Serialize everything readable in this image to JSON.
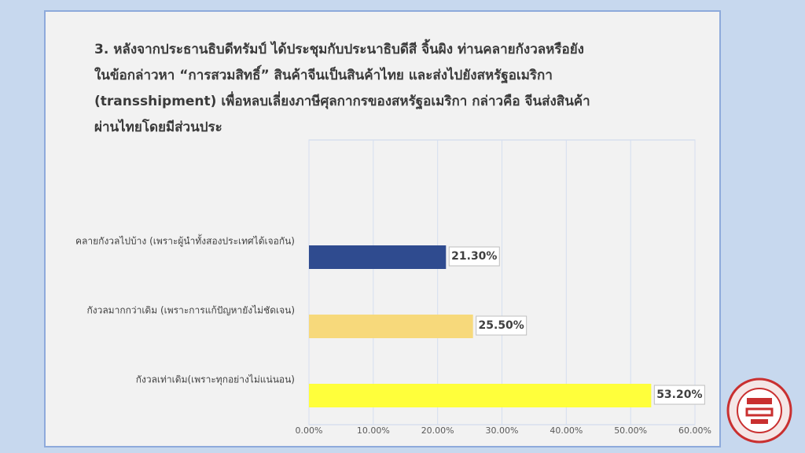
{
  "chart_data": {
    "type": "bar",
    "orientation": "horizontal",
    "title": [
      "3.   หลังจากประธานธิบดีทรัมป์ ได้ประชุมกับประนาธิบดีสี จิ้นผิง ท่านคลายกังวลหรือยัง",
      "ในข้อกล่าวหา “การสวมสิทธิ์”       สินค้าจีนเป็นสินค้าไทย และส่งไปยังสหรัฐอเมริกา",
      "(transshipment) เพื่อหลบเลี่ยงภาษีศุลกากรของสหรัฐอเมริกา  กล่าวคือ จีนส่งสินค้า",
      "ผ่านไทยโดยมีส่วนประ"
    ],
    "categories": [
      "คลายกังวลไปบ้าง (เพราะผู้นำทั้งสองประเทศได้เจอกัน)",
      "กังวลมากกว่าเดิม (เพราะการแก้ปัญหายังไม่ชัดเจน)",
      "กังวลเท่าเดิม(เพราะทุกอย่างไม่แน่นอน)"
    ],
    "values": [
      21.3,
      25.5,
      53.2
    ],
    "value_labels": [
      "21.30%",
      "25.50%",
      "53.20%"
    ],
    "colors": [
      "#2f4b8f",
      "#f7d97b",
      "#ffff3b"
    ],
    "xlim": [
      0,
      60
    ],
    "xticks": [
      {
        "value": 0,
        "label": "0.00%"
      },
      {
        "value": 10,
        "label": "10.00%"
      },
      {
        "value": 20,
        "label": "20.00%"
      },
      {
        "value": 30,
        "label": "30.00%"
      },
      {
        "value": 40,
        "label": "40.00%"
      },
      {
        "value": 50,
        "label": "50.00%"
      },
      {
        "value": 60,
        "label": "60.00%"
      }
    ],
    "grid": true
  }
}
